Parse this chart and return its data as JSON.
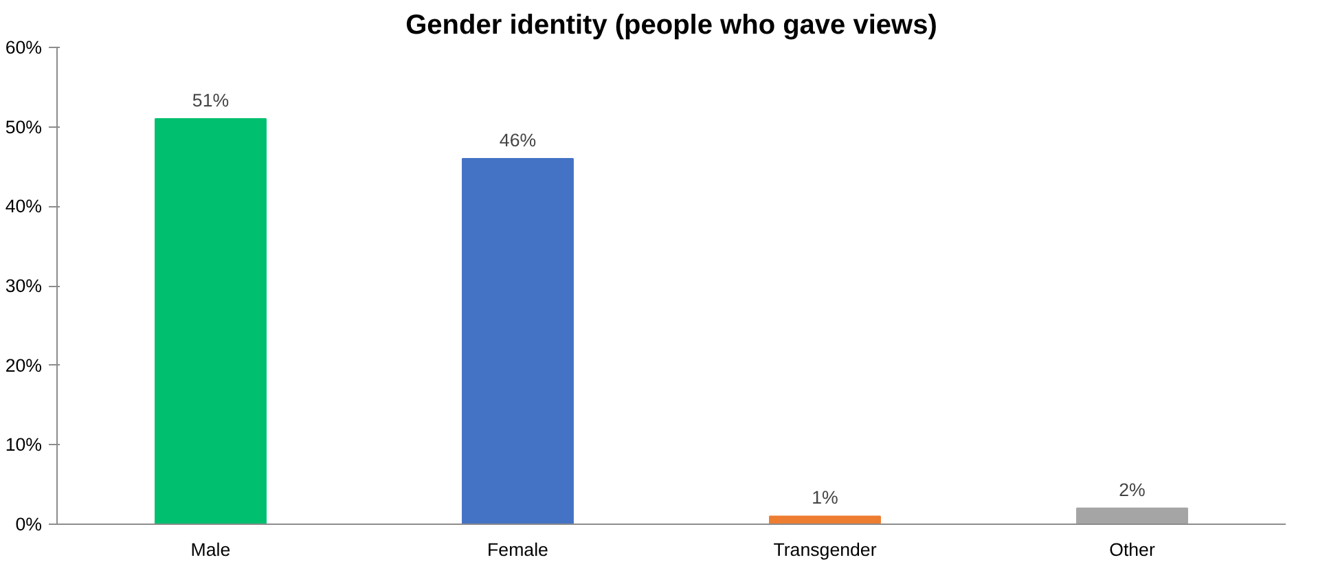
{
  "chart_data": {
    "type": "bar",
    "title": "Gender identity (people who gave views)",
    "categories": [
      "Male",
      "Female",
      "Transgender",
      "Other"
    ],
    "values": [
      51,
      46,
      1,
      2
    ],
    "colors": [
      "#00bf6f",
      "#4472c4",
      "#ed7d31",
      "#a5a5a5"
    ],
    "value_labels": [
      "51%",
      "46%",
      "1%",
      "2%"
    ],
    "ylim": [
      0,
      60
    ],
    "yticks": [
      {
        "value": 0,
        "label": "0%"
      },
      {
        "value": 10,
        "label": "10%"
      },
      {
        "value": 20,
        "label": "20%"
      },
      {
        "value": 30,
        "label": "30%"
      },
      {
        "value": 40,
        "label": "40%"
      },
      {
        "value": 50,
        "label": "50%"
      },
      {
        "value": 60,
        "label": "60%"
      }
    ],
    "grid": false
  }
}
